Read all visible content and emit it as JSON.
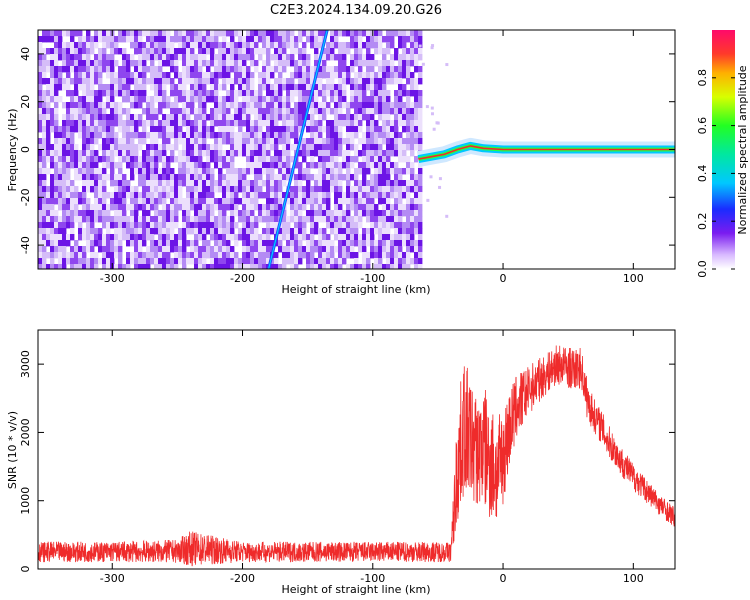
{
  "title": "C2E3.2024.134.09.20.G26",
  "colors": {
    "snr_line": "#ef2b2b",
    "spectrogram_noise": "#7a1cf0",
    "spectrogram_light": "#c9a8f5",
    "carrier": "#ef2b2b",
    "axis": "#000000"
  },
  "chart_data": [
    {
      "type": "heatmap",
      "title": "C2E3.2024.134.09.20.G26",
      "xlabel": "Height of straight line (km)",
      "ylabel": "Frequency (Hz)",
      "xlim": [
        -357,
        132
      ],
      "ylim": [
        -50,
        50
      ],
      "x_ticks": [
        "-300",
        "-200",
        "-100",
        "0",
        "100"
      ],
      "x_tick_values": [
        -300,
        -200,
        -100,
        0,
        100
      ],
      "y_ticks": [
        "40",
        "20",
        "0",
        "-20",
        "-40"
      ],
      "y_tick_values": [
        40,
        20,
        0,
        -20,
        -40
      ],
      "noise_region_x": [
        -357,
        -65
      ],
      "carrier": {
        "start_x": -65,
        "end_x": 132,
        "frequency_points": [
          [
            -65,
            -4
          ],
          [
            -55,
            -3
          ],
          [
            -45,
            -2
          ],
          [
            -35,
            0
          ],
          [
            -25,
            1.5
          ],
          [
            -15,
            0.5
          ],
          [
            0,
            0
          ],
          [
            132,
            0
          ]
        ]
      },
      "streaks": [
        {
          "x": [
            -180,
            -135
          ],
          "y": [
            -50,
            50
          ]
        }
      ],
      "colorbar": {
        "label": "Normalized spectral amplitude",
        "ticks": [
          "0.0",
          "0.2",
          "0.4",
          "0.6",
          "0.8"
        ],
        "tick_values": [
          0.0,
          0.2,
          0.4,
          0.6,
          0.8
        ],
        "range": [
          0,
          1
        ],
        "colormap": "rainbow"
      }
    },
    {
      "type": "line",
      "xlabel": "Height of straight line (km)",
      "ylabel": "SNR (10 * v/v)",
      "xlim": [
        -357,
        132
      ],
      "ylim": [
        0,
        3500
      ],
      "x_ticks": [
        "-300",
        "-200",
        "-100",
        "0",
        "100"
      ],
      "x_tick_values": [
        -300,
        -200,
        -100,
        0,
        100
      ],
      "y_ticks": [
        "0",
        "1000",
        "2000",
        "3000"
      ],
      "y_tick_values": [
        0,
        1000,
        2000,
        3000
      ],
      "series": [
        {
          "x": [
            -357,
            -300,
            -250,
            -240,
            -200,
            -150,
            -100,
            -60,
            -40,
            -35,
            -30,
            -25,
            -20,
            -15,
            -10,
            -5,
            0,
            5,
            10,
            15,
            20,
            25,
            30,
            35,
            40,
            45,
            50,
            55,
            60,
            65,
            70,
            75,
            80,
            90,
            100,
            110,
            120,
            132
          ],
          "values": [
            250,
            250,
            260,
            300,
            250,
            250,
            250,
            250,
            250,
            1500,
            2100,
            1900,
            1700,
            1800,
            1600,
            1400,
            1650,
            2050,
            2350,
            2500,
            2620,
            2720,
            2800,
            2880,
            2980,
            2990,
            2950,
            2920,
            2950,
            2450,
            2250,
            2100,
            1900,
            1600,
            1350,
            1150,
            950,
            750
          ],
          "noise": [
            150,
            150,
            170,
            260,
            150,
            150,
            150,
            150,
            150,
            900,
            1000,
            900,
            800,
            900,
            900,
            800,
            700,
            600,
            500,
            420,
            350,
            350,
            300,
            300,
            300,
            300,
            300,
            300,
            300,
            300,
            250,
            250,
            250,
            220,
            200,
            180,
            160,
            150
          ]
        }
      ]
    }
  ]
}
